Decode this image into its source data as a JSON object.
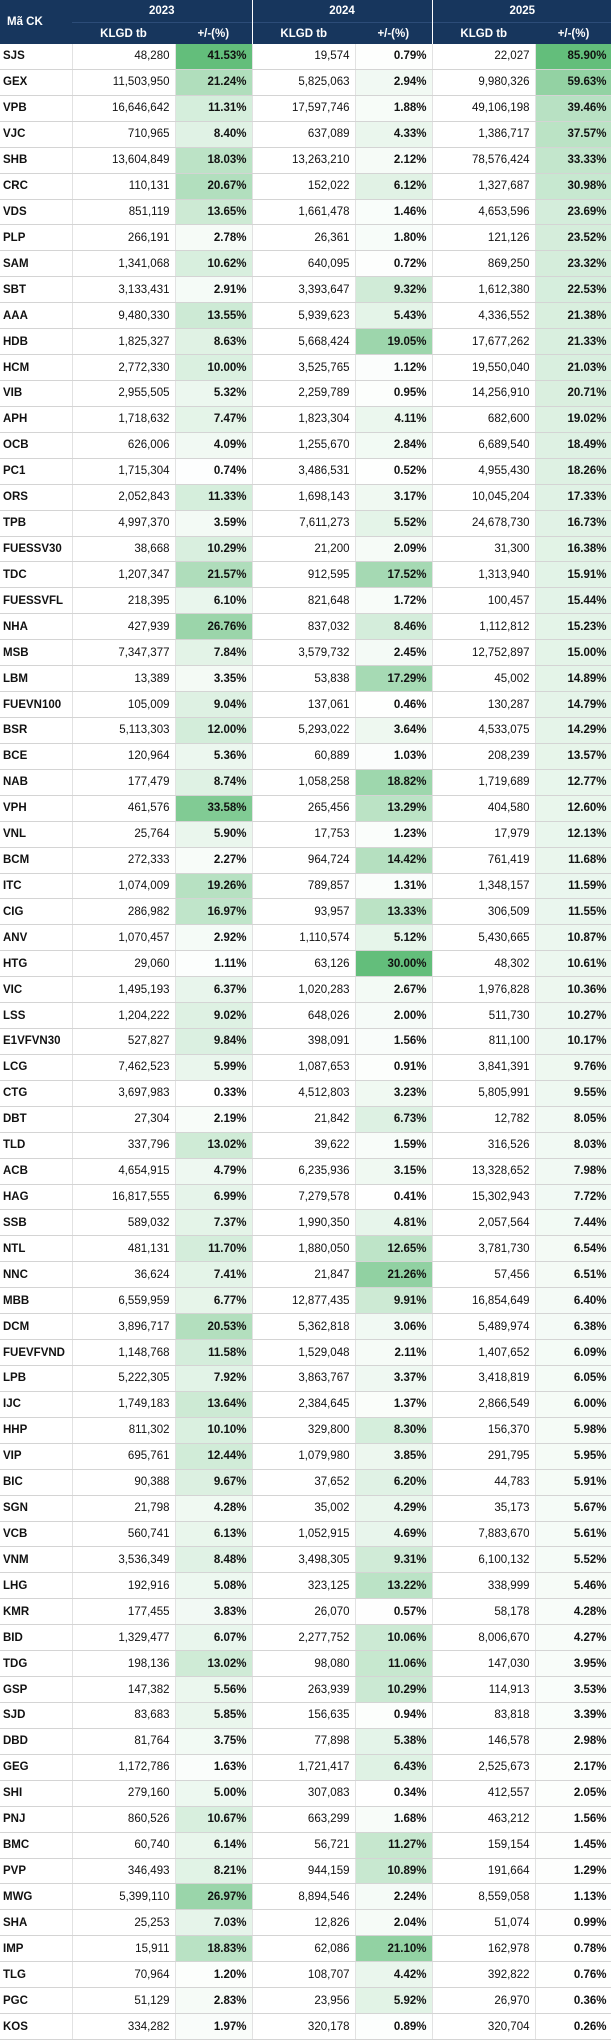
{
  "header": {
    "code_label": "Mã CK",
    "years": [
      "2023",
      "2024",
      "2025"
    ],
    "vol_label": "KLGD tb",
    "pct_label": "+/-(%)"
  },
  "colors": {
    "header_bg": "#17365d",
    "header_text": "#ffffff",
    "pct_high": "#63be7b",
    "pct_low": "#ffffff"
  },
  "rows": [
    {
      "code": "SJS",
      "v23": "48,280",
      "p23": "41.53%",
      "v24": "19,574",
      "p24": "0.79%",
      "v25": "22,027",
      "p25": "85.90%"
    },
    {
      "code": "GEX",
      "v23": "11,503,950",
      "p23": "21.24%",
      "v24": "5,825,063",
      "p24": "2.94%",
      "v25": "9,980,326",
      "p25": "59.63%"
    },
    {
      "code": "VPB",
      "v23": "16,646,642",
      "p23": "11.31%",
      "v24": "17,597,746",
      "p24": "1.88%",
      "v25": "49,106,198",
      "p25": "39.46%"
    },
    {
      "code": "VJC",
      "v23": "710,965",
      "p23": "8.40%",
      "v24": "637,089",
      "p24": "4.33%",
      "v25": "1,386,717",
      "p25": "37.57%"
    },
    {
      "code": "SHB",
      "v23": "13,604,849",
      "p23": "18.03%",
      "v24": "13,263,210",
      "p24": "2.12%",
      "v25": "78,576,424",
      "p25": "33.33%"
    },
    {
      "code": "CRC",
      "v23": "110,131",
      "p23": "20.67%",
      "v24": "152,022",
      "p24": "6.12%",
      "v25": "1,327,687",
      "p25": "30.98%"
    },
    {
      "code": "VDS",
      "v23": "851,119",
      "p23": "13.65%",
      "v24": "1,661,478",
      "p24": "1.46%",
      "v25": "4,653,596",
      "p25": "23.69%"
    },
    {
      "code": "PLP",
      "v23": "266,191",
      "p23": "2.78%",
      "v24": "26,361",
      "p24": "1.80%",
      "v25": "121,126",
      "p25": "23.52%"
    },
    {
      "code": "SAM",
      "v23": "1,341,068",
      "p23": "10.62%",
      "v24": "640,095",
      "p24": "0.72%",
      "v25": "869,250",
      "p25": "23.32%"
    },
    {
      "code": "SBT",
      "v23": "3,133,431",
      "p23": "2.91%",
      "v24": "3,393,647",
      "p24": "9.32%",
      "v25": "1,612,380",
      "p25": "22.53%"
    },
    {
      "code": "AAA",
      "v23": "9,480,330",
      "p23": "13.55%",
      "v24": "5,939,623",
      "p24": "5.43%",
      "v25": "4,336,552",
      "p25": "21.38%"
    },
    {
      "code": "HDB",
      "v23": "1,825,327",
      "p23": "8.63%",
      "v24": "5,668,424",
      "p24": "19.05%",
      "v25": "17,677,262",
      "p25": "21.33%"
    },
    {
      "code": "HCM",
      "v23": "2,772,330",
      "p23": "10.00%",
      "v24": "3,525,765",
      "p24": "1.12%",
      "v25": "19,550,040",
      "p25": "21.03%"
    },
    {
      "code": "VIB",
      "v23": "2,955,505",
      "p23": "5.32%",
      "v24": "2,259,789",
      "p24": "0.95%",
      "v25": "14,256,910",
      "p25": "20.71%"
    },
    {
      "code": "APH",
      "v23": "1,718,632",
      "p23": "7.47%",
      "v24": "1,823,304",
      "p24": "4.11%",
      "v25": "682,600",
      "p25": "19.02%"
    },
    {
      "code": "OCB",
      "v23": "626,006",
      "p23": "4.09%",
      "v24": "1,255,670",
      "p24": "2.84%",
      "v25": "6,689,540",
      "p25": "18.49%"
    },
    {
      "code": "PC1",
      "v23": "1,715,304",
      "p23": "0.74%",
      "v24": "3,486,531",
      "p24": "0.52%",
      "v25": "4,955,430",
      "p25": "18.26%"
    },
    {
      "code": "ORS",
      "v23": "2,052,843",
      "p23": "11.33%",
      "v24": "1,698,143",
      "p24": "3.17%",
      "v25": "10,045,204",
      "p25": "17.33%"
    },
    {
      "code": "TPB",
      "v23": "4,997,370",
      "p23": "3.59%",
      "v24": "7,611,273",
      "p24": "5.52%",
      "v25": "24,678,730",
      "p25": "16.73%"
    },
    {
      "code": "FUESSV30",
      "v23": "38,668",
      "p23": "10.29%",
      "v24": "21,200",
      "p24": "2.09%",
      "v25": "31,300",
      "p25": "16.38%"
    },
    {
      "code": "TDC",
      "v23": "1,207,347",
      "p23": "21.57%",
      "v24": "912,595",
      "p24": "17.52%",
      "v25": "1,313,940",
      "p25": "15.91%"
    },
    {
      "code": "FUESSVFL",
      "v23": "218,395",
      "p23": "6.10%",
      "v24": "821,648",
      "p24": "1.72%",
      "v25": "100,457",
      "p25": "15.44%"
    },
    {
      "code": "NHA",
      "v23": "427,939",
      "p23": "26.76%",
      "v24": "837,032",
      "p24": "8.46%",
      "v25": "1,112,812",
      "p25": "15.23%"
    },
    {
      "code": "MSB",
      "v23": "7,347,377",
      "p23": "7.84%",
      "v24": "3,579,732",
      "p24": "2.45%",
      "v25": "12,752,897",
      "p25": "15.00%"
    },
    {
      "code": "LBM",
      "v23": "13,389",
      "p23": "3.35%",
      "v24": "53,838",
      "p24": "17.29%",
      "v25": "45,002",
      "p25": "14.89%"
    },
    {
      "code": "FUEVN100",
      "v23": "105,009",
      "p23": "9.04%",
      "v24": "137,061",
      "p24": "0.46%",
      "v25": "130,287",
      "p25": "14.79%"
    },
    {
      "code": "BSR",
      "v23": "5,113,303",
      "p23": "12.00%",
      "v24": "5,293,022",
      "p24": "3.64%",
      "v25": "4,533,075",
      "p25": "14.29%"
    },
    {
      "code": "BCE",
      "v23": "120,964",
      "p23": "5.36%",
      "v24": "60,889",
      "p24": "1.03%",
      "v25": "208,239",
      "p25": "13.57%"
    },
    {
      "code": "NAB",
      "v23": "177,479",
      "p23": "8.74%",
      "v24": "1,058,258",
      "p24": "18.82%",
      "v25": "1,719,689",
      "p25": "12.77%"
    },
    {
      "code": "VPH",
      "v23": "461,576",
      "p23": "33.58%",
      "v24": "265,456",
      "p24": "13.29%",
      "v25": "404,580",
      "p25": "12.60%"
    },
    {
      "code": "VNL",
      "v23": "25,764",
      "p23": "5.90%",
      "v24": "17,753",
      "p24": "1.23%",
      "v25": "17,979",
      "p25": "12.13%"
    },
    {
      "code": "BCM",
      "v23": "272,333",
      "p23": "2.27%",
      "v24": "964,724",
      "p24": "14.42%",
      "v25": "761,419",
      "p25": "11.68%"
    },
    {
      "code": "ITC",
      "v23": "1,074,009",
      "p23": "19.26%",
      "v24": "789,857",
      "p24": "1.31%",
      "v25": "1,348,157",
      "p25": "11.59%"
    },
    {
      "code": "CIG",
      "v23": "286,982",
      "p23": "16.97%",
      "v24": "93,957",
      "p24": "13.33%",
      "v25": "306,509",
      "p25": "11.55%"
    },
    {
      "code": "ANV",
      "v23": "1,070,457",
      "p23": "2.92%",
      "v24": "1,110,574",
      "p24": "5.12%",
      "v25": "5,430,665",
      "p25": "10.87%"
    },
    {
      "code": "HTG",
      "v23": "29,060",
      "p23": "1.11%",
      "v24": "63,126",
      "p24": "30.00%",
      "v25": "48,302",
      "p25": "10.61%"
    },
    {
      "code": "VIC",
      "v23": "1,495,193",
      "p23": "6.37%",
      "v24": "1,020,283",
      "p24": "2.67%",
      "v25": "1,976,828",
      "p25": "10.36%"
    },
    {
      "code": "LSS",
      "v23": "1,204,222",
      "p23": "9.02%",
      "v24": "648,026",
      "p24": "2.00%",
      "v25": "511,730",
      "p25": "10.27%"
    },
    {
      "code": "E1VFVN30",
      "v23": "527,827",
      "p23": "9.84%",
      "v24": "398,091",
      "p24": "1.56%",
      "v25": "811,100",
      "p25": "10.17%"
    },
    {
      "code": "LCG",
      "v23": "7,462,523",
      "p23": "5.99%",
      "v24": "1,087,653",
      "p24": "0.91%",
      "v25": "3,841,391",
      "p25": "9.76%"
    },
    {
      "code": "CTG",
      "v23": "3,697,983",
      "p23": "0.33%",
      "v24": "4,512,803",
      "p24": "3.23%",
      "v25": "5,805,991",
      "p25": "9.55%"
    },
    {
      "code": "DBT",
      "v23": "27,304",
      "p23": "2.19%",
      "v24": "21,842",
      "p24": "6.73%",
      "v25": "12,782",
      "p25": "8.05%"
    },
    {
      "code": "TLD",
      "v23": "337,796",
      "p23": "13.02%",
      "v24": "39,622",
      "p24": "1.59%",
      "v25": "316,526",
      "p25": "8.03%"
    },
    {
      "code": "ACB",
      "v23": "4,654,915",
      "p23": "4.79%",
      "v24": "6,235,936",
      "p24": "3.15%",
      "v25": "13,328,652",
      "p25": "7.98%"
    },
    {
      "code": "HAG",
      "v23": "16,817,555",
      "p23": "6.99%",
      "v24": "7,279,578",
      "p24": "0.41%",
      "v25": "15,302,943",
      "p25": "7.72%"
    },
    {
      "code": "SSB",
      "v23": "589,032",
      "p23": "7.37%",
      "v24": "1,990,350",
      "p24": "4.81%",
      "v25": "2,057,564",
      "p25": "7.44%"
    },
    {
      "code": "NTL",
      "v23": "481,131",
      "p23": "11.70%",
      "v24": "1,880,050",
      "p24": "12.65%",
      "v25": "3,781,730",
      "p25": "6.54%"
    },
    {
      "code": "NNC",
      "v23": "36,624",
      "p23": "7.41%",
      "v24": "21,847",
      "p24": "21.26%",
      "v25": "57,456",
      "p25": "6.51%"
    },
    {
      "code": "MBB",
      "v23": "6,559,959",
      "p23": "6.77%",
      "v24": "12,877,435",
      "p24": "9.91%",
      "v25": "16,854,649",
      "p25": "6.40%"
    },
    {
      "code": "DCM",
      "v23": "3,896,717",
      "p23": "20.53%",
      "v24": "5,362,818",
      "p24": "3.06%",
      "v25": "5,489,974",
      "p25": "6.38%"
    },
    {
      "code": "FUEVFVND",
      "v23": "1,148,768",
      "p23": "11.58%",
      "v24": "1,529,048",
      "p24": "2.11%",
      "v25": "1,407,652",
      "p25": "6.09%"
    },
    {
      "code": "LPB",
      "v23": "5,222,305",
      "p23": "7.92%",
      "v24": "3,863,767",
      "p24": "3.37%",
      "v25": "3,418,819",
      "p25": "6.05%"
    },
    {
      "code": "IJC",
      "v23": "1,749,183",
      "p23": "13.64%",
      "v24": "2,384,645",
      "p24": "1.37%",
      "v25": "2,866,549",
      "p25": "6.00%"
    },
    {
      "code": "HHP",
      "v23": "811,302",
      "p23": "10.10%",
      "v24": "329,800",
      "p24": "8.30%",
      "v25": "156,370",
      "p25": "5.98%"
    },
    {
      "code": "VIP",
      "v23": "695,761",
      "p23": "12.44%",
      "v24": "1,079,980",
      "p24": "3.85%",
      "v25": "291,795",
      "p25": "5.95%"
    },
    {
      "code": "BIC",
      "v23": "90,388",
      "p23": "9.67%",
      "v24": "37,652",
      "p24": "6.20%",
      "v25": "44,783",
      "p25": "5.91%"
    },
    {
      "code": "SGN",
      "v23": "21,798",
      "p23": "4.28%",
      "v24": "35,002",
      "p24": "4.29%",
      "v25": "35,173",
      "p25": "5.67%"
    },
    {
      "code": "VCB",
      "v23": "560,741",
      "p23": "6.13%",
      "v24": "1,052,915",
      "p24": "4.69%",
      "v25": "7,883,670",
      "p25": "5.61%"
    },
    {
      "code": "VNM",
      "v23": "3,536,349",
      "p23": "8.48%",
      "v24": "3,498,305",
      "p24": "9.31%",
      "v25": "6,100,132",
      "p25": "5.52%"
    },
    {
      "code": "LHG",
      "v23": "192,916",
      "p23": "5.08%",
      "v24": "323,125",
      "p24": "13.22%",
      "v25": "338,999",
      "p25": "5.46%"
    },
    {
      "code": "KMR",
      "v23": "177,455",
      "p23": "3.83%",
      "v24": "26,070",
      "p24": "0.57%",
      "v25": "58,178",
      "p25": "4.28%"
    },
    {
      "code": "BID",
      "v23": "1,329,477",
      "p23": "6.07%",
      "v24": "2,277,752",
      "p24": "10.06%",
      "v25": "8,006,670",
      "p25": "4.27%"
    },
    {
      "code": "TDG",
      "v23": "198,136",
      "p23": "13.02%",
      "v24": "98,080",
      "p24": "11.06%",
      "v25": "147,030",
      "p25": "3.95%"
    },
    {
      "code": "GSP",
      "v23": "147,382",
      "p23": "5.56%",
      "v24": "263,939",
      "p24": "10.29%",
      "v25": "114,913",
      "p25": "3.53%"
    },
    {
      "code": "SJD",
      "v23": "83,683",
      "p23": "5.85%",
      "v24": "156,635",
      "p24": "0.94%",
      "v25": "83,818",
      "p25": "3.39%"
    },
    {
      "code": "DBD",
      "v23": "81,764",
      "p23": "3.75%",
      "v24": "77,898",
      "p24": "5.38%",
      "v25": "146,578",
      "p25": "2.98%"
    },
    {
      "code": "GEG",
      "v23": "1,172,786",
      "p23": "1.63%",
      "v24": "1,721,417",
      "p24": "6.43%",
      "v25": "2,525,673",
      "p25": "2.17%"
    },
    {
      "code": "SHI",
      "v23": "279,160",
      "p23": "5.00%",
      "v24": "307,083",
      "p24": "0.34%",
      "v25": "412,557",
      "p25": "2.05%"
    },
    {
      "code": "PNJ",
      "v23": "860,526",
      "p23": "10.67%",
      "v24": "663,299",
      "p24": "1.68%",
      "v25": "463,212",
      "p25": "1.56%"
    },
    {
      "code": "BMC",
      "v23": "60,740",
      "p23": "6.14%",
      "v24": "56,721",
      "p24": "11.27%",
      "v25": "159,154",
      "p25": "1.45%"
    },
    {
      "code": "PVP",
      "v23": "346,493",
      "p23": "8.21%",
      "v24": "944,159",
      "p24": "10.89%",
      "v25": "191,664",
      "p25": "1.29%"
    },
    {
      "code": "MWG",
      "v23": "5,399,110",
      "p23": "26.97%",
      "v24": "8,894,546",
      "p24": "2.24%",
      "v25": "8,559,058",
      "p25": "1.13%"
    },
    {
      "code": "SHA",
      "v23": "25,253",
      "p23": "7.03%",
      "v24": "12,826",
      "p24": "2.04%",
      "v25": "51,074",
      "p25": "0.99%"
    },
    {
      "code": "IMP",
      "v23": "15,911",
      "p23": "18.83%",
      "v24": "62,086",
      "p24": "21.10%",
      "v25": "162,978",
      "p25": "0.78%"
    },
    {
      "code": "TLG",
      "v23": "70,964",
      "p23": "1.20%",
      "v24": "108,707",
      "p24": "4.42%",
      "v25": "392,822",
      "p25": "0.76%"
    },
    {
      "code": "PGC",
      "v23": "51,129",
      "p23": "2.83%",
      "v24": "23,956",
      "p24": "5.92%",
      "v25": "26,970",
      "p25": "0.36%"
    },
    {
      "code": "KOS",
      "v23": "334,282",
      "p23": "1.97%",
      "v24": "320,178",
      "p24": "0.89%",
      "v25": "320,704",
      "p25": "0.26%"
    }
  ]
}
